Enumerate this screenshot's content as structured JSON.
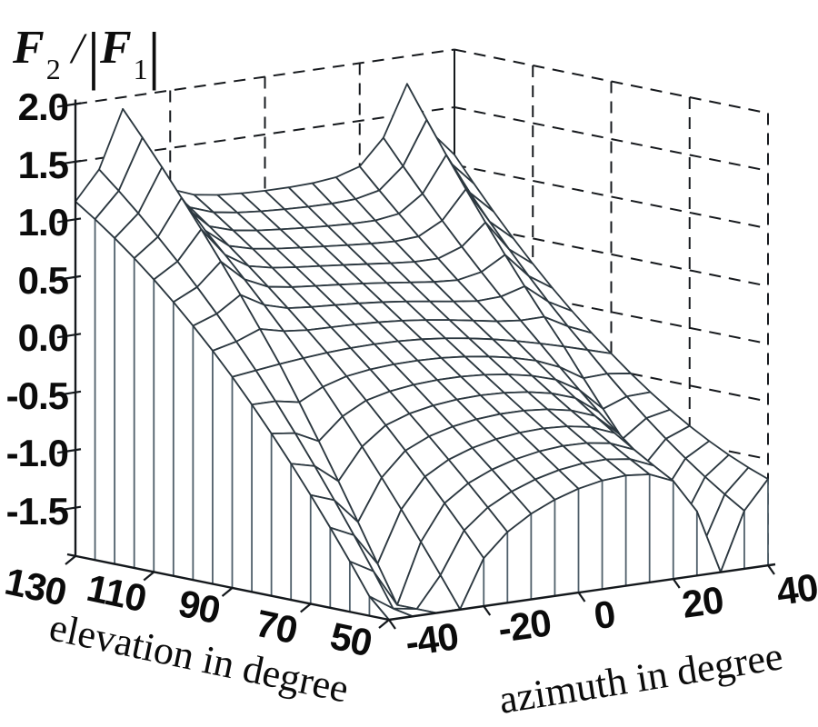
{
  "figure": {
    "title": {
      "numerator": "F",
      "numerator_sub": "2",
      "op": "/",
      "abs_open": "|",
      "denominator": "F",
      "denominator_sub": "1",
      "abs_close": "|"
    },
    "background_color": "#ffffff"
  },
  "style": {
    "mesh_color": "#2c3840",
    "curtain_color": "#4f5f6a",
    "axis_color": "#14181c",
    "grid_dash_color": "#16191d",
    "text_color": "#0b0b0b",
    "surface_fill": "#ffffff"
  },
  "chart_data": {
    "type": "surface-mesh-3d",
    "title": "F2 / |F1|",
    "x_axis": {
      "label": "azimuth in degree",
      "min": -40,
      "max": 40,
      "grid_step_degrees": 5,
      "tick_values": [
        -40,
        -20,
        0,
        20,
        40
      ],
      "tick_labels": [
        "-40",
        "-20",
        "0",
        "20",
        "40"
      ]
    },
    "y_axis": {
      "label": "elevation in degree",
      "min": 50,
      "max": 130,
      "grid_step_degrees": 5,
      "tick_values": [
        130,
        110,
        90,
        70,
        50
      ],
      "tick_labels": [
        "130",
        "110",
        "90",
        "70",
        "50"
      ]
    },
    "z_axis": {
      "label": "F2 / |F1|",
      "tick_values": [
        2.0,
        1.5,
        1.0,
        0.5,
        0.0,
        -0.5,
        -1.0,
        -1.5
      ],
      "tick_labels": [
        "2.0",
        "1.5",
        "1.0",
        "0.5",
        "0.0",
        "-0.5",
        "-1.0",
        "-1.5"
      ],
      "clip_min": -1.92,
      "clip_max": 2.0
    },
    "wall_grid": "dashed",
    "curtain_skirt": true,
    "z_values_at_ticks": {
      "azimuth": [
        -40,
        -20,
        0,
        20,
        40
      ],
      "elevation": [
        130,
        110,
        90,
        70,
        50
      ],
      "values": [
        [
          1.15,
          0.92,
          1.01,
          1.1,
          1.09
        ],
        [
          0.63,
          0.62,
          0.51,
          0.44,
          0.28
        ],
        [
          -0.09,
          0.0,
          0.0,
          -0.13,
          -0.36
        ],
        [
          -0.98,
          -0.71,
          -0.51,
          -0.64,
          -0.85
        ],
        [
          -1.92,
          -1.51,
          -1.02,
          -1.07,
          -1.17
        ]
      ]
    },
    "features": {
      "peaks": [
        {
          "azimuth": -30,
          "elevation": 130,
          "z": 1.89
        },
        {
          "azimuth": 30,
          "elevation": 130,
          "z": 1.76
        }
      ],
      "dips": [
        {
          "azimuth": -30,
          "elevation": 50,
          "z": -1.92
        },
        {
          "azimuth": 30,
          "elevation": 50,
          "z": -1.92
        }
      ]
    },
    "surface_model": {
      "a": -0.225,
      "b": 1.2,
      "c0": -0.135,
      "c2": 0.335,
      "d": -0.225,
      "arch": 0.45,
      "poles": [
        {
          "azimuth": -30,
          "width": 4.5,
          "amp_back": 0.9,
          "amp_front": 1.05
        },
        {
          "azimuth": 30,
          "width": 4.5,
          "amp_back": 0.8,
          "amp_front": 1.0
        }
      ]
    }
  }
}
